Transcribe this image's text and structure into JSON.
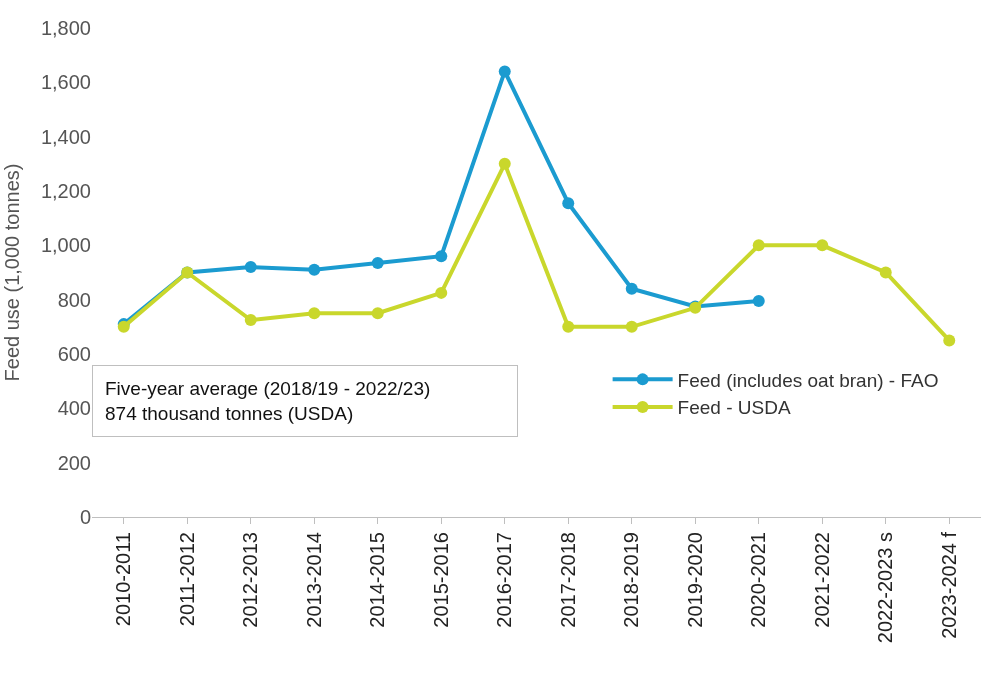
{
  "chart_data": {
    "type": "line",
    "ylabel": "Feed use (1,000 tonnes)",
    "categories": [
      "2010-2011",
      "2011-2012",
      "2012-2013",
      "2013-2014",
      "2014-2015",
      "2015-2016",
      "2016-2017",
      "2017-2018",
      "2018-2019",
      "2019-2020",
      "2020-2021",
      "2021-2022",
      "2022-2023 s",
      "2023-2024 f"
    ],
    "series": [
      {
        "name": "Feed (includes oat bran) - FAO",
        "color": "#1b9bd0",
        "values": [
          710,
          900,
          920,
          910,
          935,
          960,
          1640,
          1155,
          840,
          775,
          795,
          null,
          null,
          null
        ]
      },
      {
        "name": "Feed - USDA",
        "color": "#c9d72c",
        "values": [
          700,
          900,
          725,
          750,
          750,
          825,
          1300,
          700,
          700,
          770,
          1000,
          1000,
          900,
          650
        ]
      }
    ],
    "ylim": [
      0,
      1800
    ],
    "yticks": [
      {
        "value": 0,
        "label": "0"
      },
      {
        "value": 200,
        "label": "200"
      },
      {
        "value": 400,
        "label": "400"
      },
      {
        "value": 600,
        "label": "600"
      },
      {
        "value": 800,
        "label": "800"
      },
      {
        "value": 1000,
        "label": "1,000"
      },
      {
        "value": 1200,
        "label": "1,200"
      },
      {
        "value": 1400,
        "label": "1,400"
      },
      {
        "value": 1600,
        "label": "1,600"
      },
      {
        "value": 1800,
        "label": "1,800"
      }
    ],
    "legend": "bottom right",
    "marker": "circle",
    "line_style": "solid",
    "annotations": [
      "Five-year average (2018/19 - 2022/23)\n874 thousand tonnes (USDA)"
    ]
  }
}
